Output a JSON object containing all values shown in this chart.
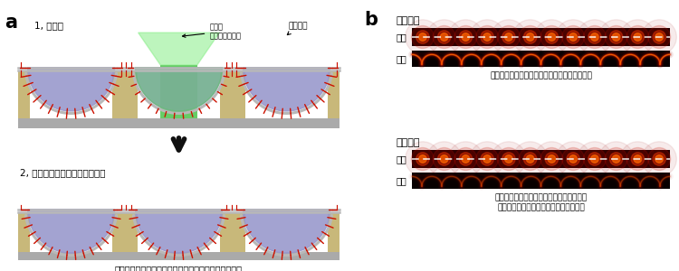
{
  "fig_width": 7.5,
  "fig_height": 3.0,
  "dpi": 100,
  "bg_color": "#ffffff",
  "label_a": "a",
  "label_b": "b",
  "title1": "1, 光照射",
  "title2": "2, 蛍光脂質の非対称分布の形成",
  "annotation1": "強力な\nレーザー光照射",
  "annotation2": "蛍光脂質",
  "caption1": "蛍光脂質が外層にのみ存在する非対称な生体膜を形成",
  "section_b_top": "光照射前",
  "section_b_bottom": "光照射後",
  "label_top1": "上面",
  "label_cross1": "断面",
  "label_top2": "上面",
  "label_cross2": "断面",
  "caption_b1": "光照射前は２重層の蛍光強度は１重層の約２倍",
  "caption_b2": "光照射後は内層に蛍光脂質がなくなるため\n２重層の蛍光強度は１重層と同等になる",
  "colors": {
    "sand": "#c8b87a",
    "lipid_body": "#9999cc",
    "membrane_gray": "#b8b8b8",
    "red_head": "#cc1100",
    "green_laser_rect": "#33bb33",
    "green_laser_glow": "#88ee88",
    "black": "#000000",
    "white": "#ffffff",
    "substrate_gray": "#aaaaaa",
    "dark_red_bg": "#280000",
    "arrow_dark": "#111111"
  }
}
